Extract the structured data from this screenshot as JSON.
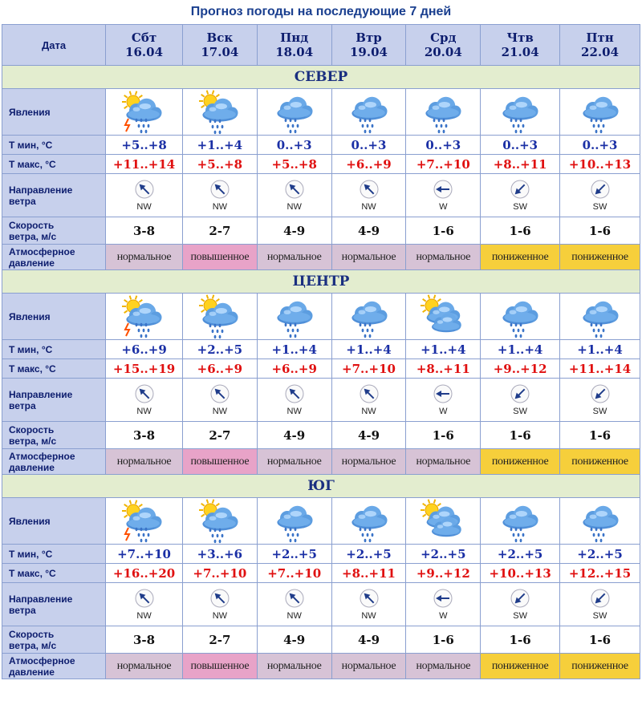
{
  "title": "Прогноз погоды на последующие 7 дней",
  "header_label": "Дата",
  "days": [
    {
      "name": "Сбт",
      "date": "16.04"
    },
    {
      "name": "Вск",
      "date": "17.04"
    },
    {
      "name": "Пнд",
      "date": "18.04"
    },
    {
      "name": "Втр",
      "date": "19.04"
    },
    {
      "name": "Срд",
      "date": "20.04"
    },
    {
      "name": "Чтв",
      "date": "21.04"
    },
    {
      "name": "Птн",
      "date": "22.04"
    }
  ],
  "row_labels": {
    "phenomena": "Явления",
    "tmin": "Т мин, °С",
    "tmax": "Т макс, °С",
    "wind_dir_1": "Направление",
    "wind_dir_2": "ветра",
    "wind_speed_1": "Скорость",
    "wind_speed_2": "ветра, м/с",
    "pressure_1": "Атмосферное",
    "pressure_2": "давление"
  },
  "colors": {
    "tmin": "#1a2fa5",
    "tmax": "#e01010",
    "pressure_normal": "#d7c3d6",
    "pressure_high": "#e8a3c8",
    "pressure_low": "#f6cf3b"
  },
  "regions": [
    {
      "name": "СЕВЕР",
      "icons": [
        "sun-cloud-thunder-rain-icon",
        "sun-cloud-rain-icon",
        "cloud-rain-icon",
        "cloud-rain-icon",
        "cloud-rain-icon",
        "cloud-rain-icon",
        "cloud-rain-icon"
      ],
      "tmin": [
        "+5..+8",
        "+1..+4",
        "0..+3",
        "0..+3",
        "0..+3",
        "0..+3",
        "0..+3"
      ],
      "tmax": [
        "+11..+14",
        "+5..+8",
        "+5..+8",
        "+6..+9",
        "+7..+10",
        "+8..+11",
        "+10..+13"
      ],
      "wind": [
        "NW",
        "NW",
        "NW",
        "NW",
        "W",
        "SW",
        "SW"
      ],
      "speed": [
        "3-8",
        "2-7",
        "4-9",
        "4-9",
        "1-6",
        "1-6",
        "1-6"
      ],
      "pressure": [
        "нормальное",
        "повышенное",
        "нормальное",
        "нормальное",
        "нормальное",
        "пониженное",
        "пониженное"
      ]
    },
    {
      "name": "ЦЕНТР",
      "icons": [
        "sun-cloud-thunder-rain-icon",
        "sun-cloud-rain-icon",
        "cloud-rain-icon",
        "cloud-rain-icon",
        "sun-clouds-icon",
        "cloud-rain-icon",
        "cloud-rain-icon"
      ],
      "tmin": [
        "+6..+9",
        "+2..+5",
        "+1..+4",
        "+1..+4",
        "+1..+4",
        "+1..+4",
        "+1..+4"
      ],
      "tmax": [
        "+15..+19",
        "+6..+9",
        "+6..+9",
        "+7..+10",
        "+8..+11",
        "+9..+12",
        "+11..+14"
      ],
      "wind": [
        "NW",
        "NW",
        "NW",
        "NW",
        "W",
        "SW",
        "SW"
      ],
      "speed": [
        "3-8",
        "2-7",
        "4-9",
        "4-9",
        "1-6",
        "1-6",
        "1-6"
      ],
      "pressure": [
        "нормальное",
        "повышенное",
        "нормальное",
        "нормальное",
        "нормальное",
        "пониженное",
        "пониженное"
      ]
    },
    {
      "name": "ЮГ",
      "icons": [
        "sun-cloud-thunder-rain-icon",
        "sun-cloud-rain-icon",
        "cloud-rain-icon",
        "cloud-rain-icon",
        "sun-clouds-icon",
        "cloud-rain-icon",
        "cloud-rain-icon"
      ],
      "tmin": [
        "+7..+10",
        "+3..+6",
        "+2..+5",
        "+2..+5",
        "+2..+5",
        "+2..+5",
        "+2..+5"
      ],
      "tmax": [
        "+16..+20",
        "+7..+10",
        "+7..+10",
        "+8..+11",
        "+9..+12",
        "+10..+13",
        "+12..+15"
      ],
      "wind": [
        "NW",
        "NW",
        "NW",
        "NW",
        "W",
        "SW",
        "SW"
      ],
      "speed": [
        "3-8",
        "2-7",
        "4-9",
        "4-9",
        "1-6",
        "1-6",
        "1-6"
      ],
      "pressure": [
        "нормальное",
        "повышенное",
        "нормальное",
        "нормальное",
        "нормальное",
        "пониженное",
        "пониженное"
      ]
    }
  ]
}
